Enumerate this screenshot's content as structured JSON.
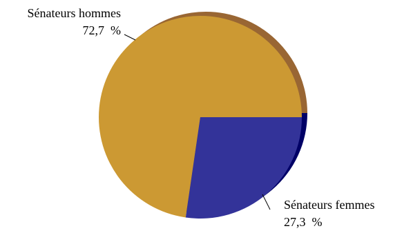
{
  "chart_data": {
    "type": "pie",
    "title": "",
    "legend": "none",
    "slices": [
      {
        "label": "Sénateurs hommes",
        "value": 72.7,
        "value_text": "72,7  %",
        "color": "#cc9933",
        "side_color": "#996633"
      },
      {
        "label": "Sénateurs femmes",
        "value": 27.3,
        "value_text": "27,3  %",
        "color": "#333399",
        "side_color": "#000066"
      }
    ]
  }
}
